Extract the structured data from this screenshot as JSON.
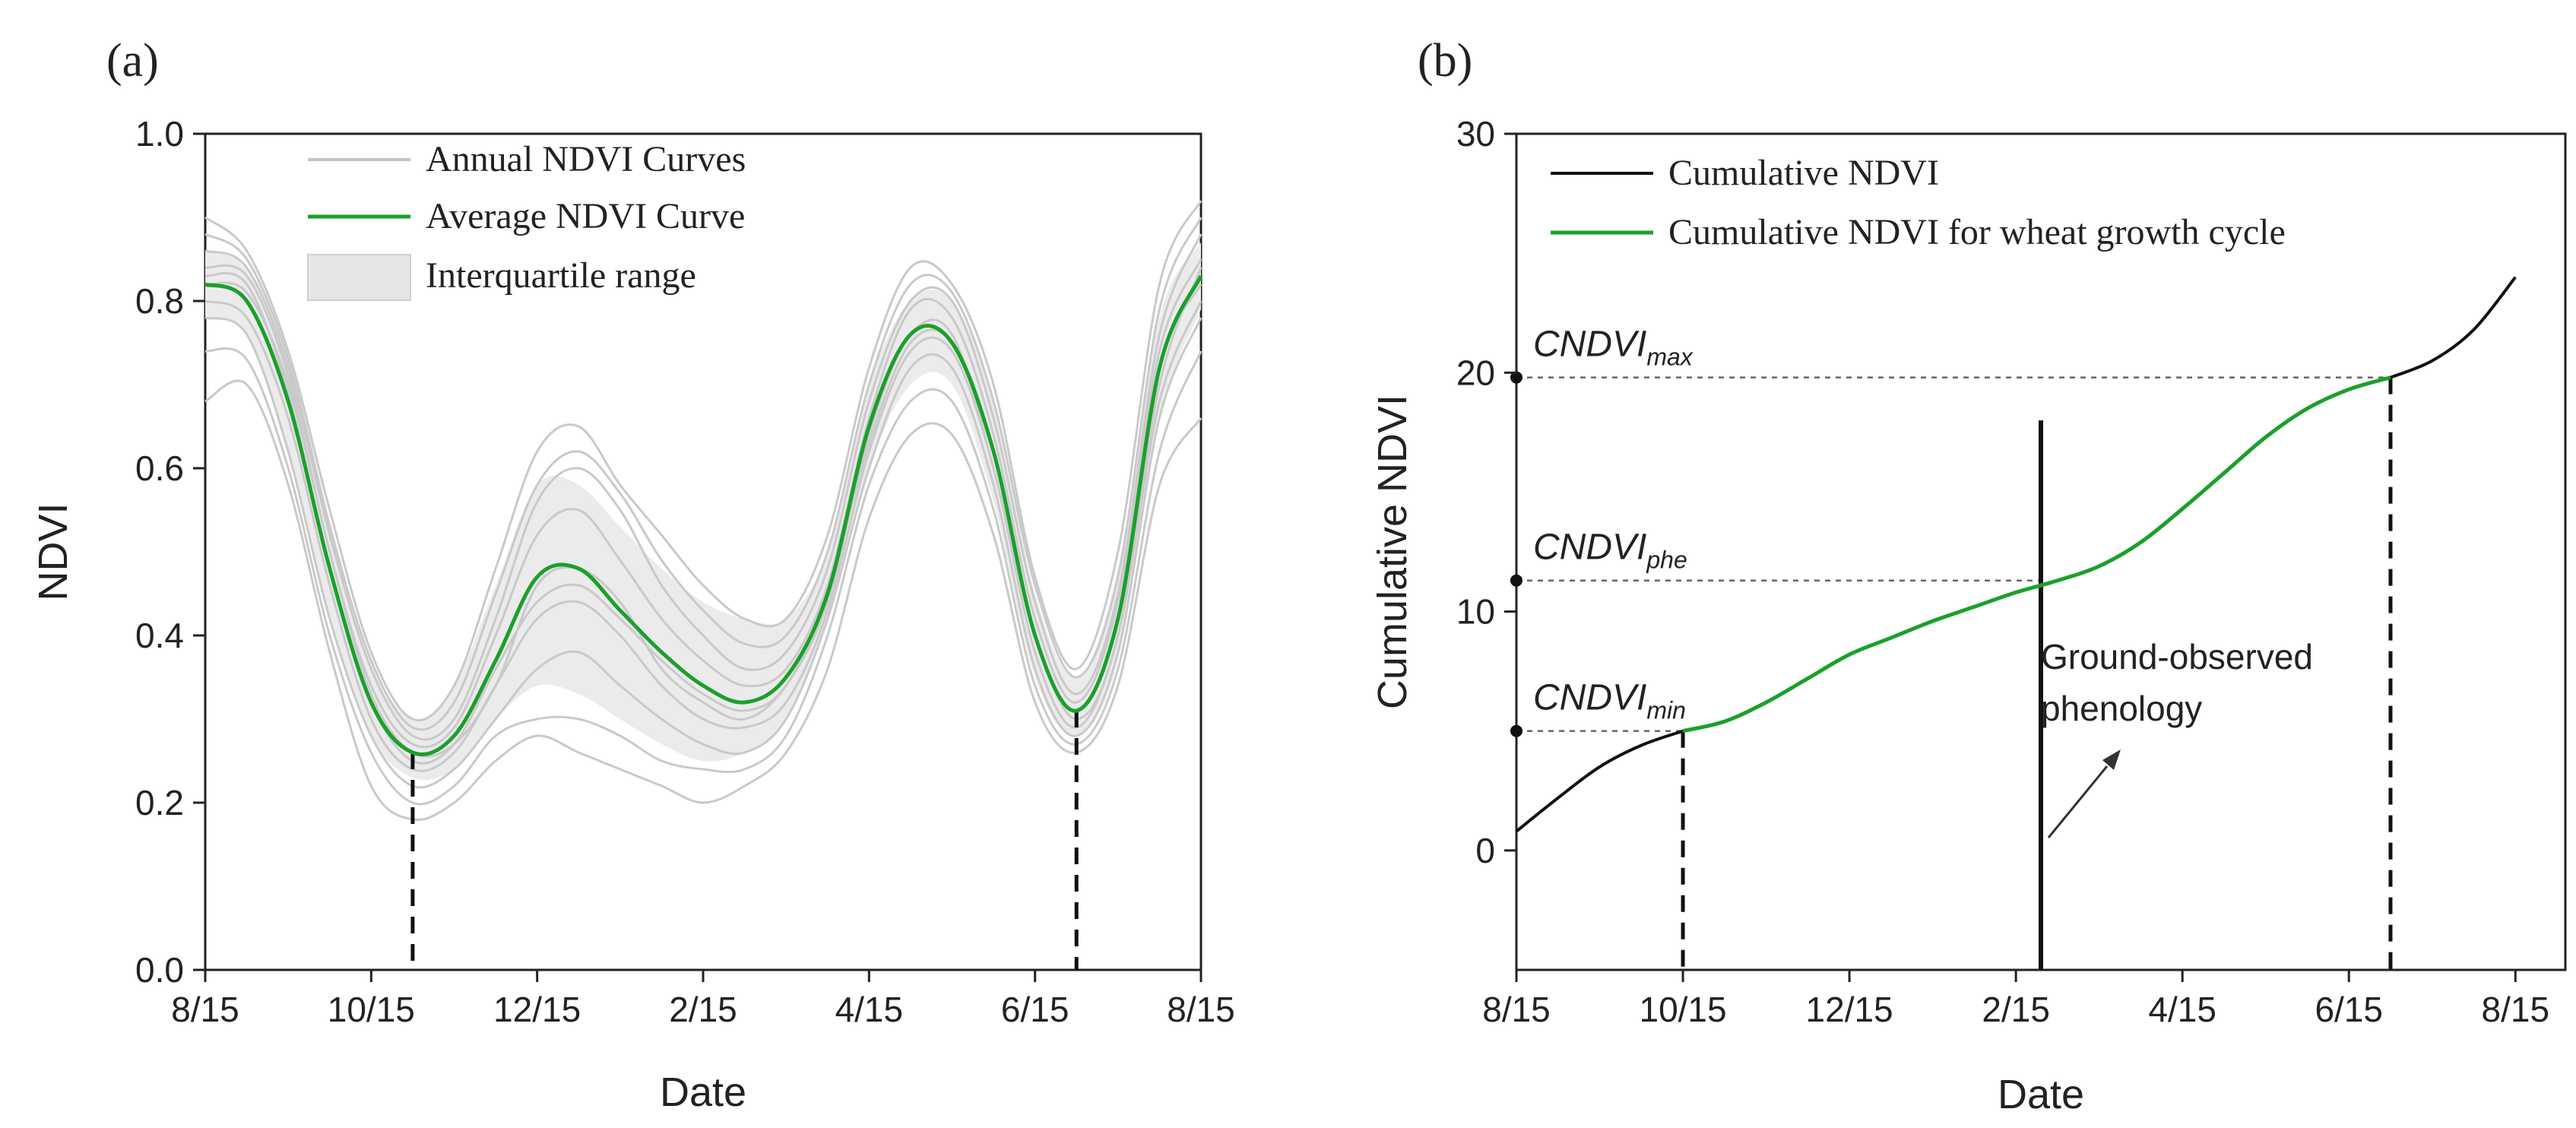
{
  "chart_data": [
    {
      "panel": "(a)",
      "type": "line",
      "xlabel": "Date",
      "ylabel": "NDVI",
      "x_ticks": [
        "8/15",
        "10/15",
        "12/15",
        "2/15",
        "4/15",
        "6/15",
        "8/15"
      ],
      "y_ticks": [
        "0.0",
        "0.2",
        "0.4",
        "0.6",
        "0.8",
        "1.0"
      ],
      "ylim": [
        0,
        1
      ],
      "grid": false,
      "legend_position": "top-center",
      "legend": [
        "Annual NDVI Curves",
        "Average NDVI Curve",
        "Interquartile range"
      ],
      "average_series": {
        "name": "Average NDVI Curve",
        "x_months": [
          0,
          0.5,
          1,
          1.5,
          2,
          2.5,
          3,
          3.5,
          4,
          4.5,
          5,
          5.5,
          6,
          6.5,
          7,
          7.5,
          8,
          8.5,
          9,
          9.5,
          10,
          10.5,
          11,
          11.5,
          12
        ],
        "values": [
          0.82,
          0.8,
          0.68,
          0.48,
          0.32,
          0.26,
          0.28,
          0.37,
          0.47,
          0.48,
          0.43,
          0.38,
          0.34,
          0.32,
          0.35,
          0.45,
          0.65,
          0.76,
          0.75,
          0.62,
          0.4,
          0.31,
          0.42,
          0.72,
          0.83
        ]
      },
      "iqr_band": {
        "name": "Interquartile range",
        "x_months": [
          0,
          0.5,
          1,
          1.5,
          2,
          2.5,
          3,
          3.5,
          4,
          4.5,
          5,
          5.5,
          6,
          6.5,
          7,
          7.5,
          8,
          8.5,
          9,
          9.5,
          10,
          10.5,
          11,
          11.5,
          12
        ],
        "lower": [
          0.78,
          0.76,
          0.62,
          0.42,
          0.28,
          0.23,
          0.24,
          0.3,
          0.34,
          0.33,
          0.3,
          0.27,
          0.25,
          0.26,
          0.3,
          0.42,
          0.6,
          0.7,
          0.7,
          0.56,
          0.35,
          0.28,
          0.37,
          0.66,
          0.79
        ],
        "upper": [
          0.86,
          0.84,
          0.74,
          0.54,
          0.37,
          0.3,
          0.34,
          0.46,
          0.58,
          0.58,
          0.53,
          0.48,
          0.44,
          0.42,
          0.42,
          0.5,
          0.7,
          0.8,
          0.8,
          0.68,
          0.45,
          0.35,
          0.48,
          0.78,
          0.87
        ]
      },
      "annual_curves": [
        {
          "name": "Annual NDVI Curve 1",
          "values": [
            0.86,
            0.84,
            0.72,
            0.52,
            0.36,
            0.28,
            0.3,
            0.42,
            0.56,
            0.6,
            0.55,
            0.46,
            0.4,
            0.36,
            0.38,
            0.48,
            0.68,
            0.8,
            0.8,
            0.66,
            0.44,
            0.33,
            0.45,
            0.76,
            0.88
          ]
        },
        {
          "name": "Annual NDVI Curve 2",
          "values": [
            0.78,
            0.76,
            0.62,
            0.42,
            0.28,
            0.22,
            0.24,
            0.3,
            0.36,
            0.38,
            0.34,
            0.3,
            0.27,
            0.26,
            0.3,
            0.42,
            0.6,
            0.72,
            0.72,
            0.58,
            0.36,
            0.28,
            0.38,
            0.66,
            0.78
          ]
        },
        {
          "name": "Annual NDVI Curve 3",
          "values": [
            0.82,
            0.81,
            0.7,
            0.5,
            0.33,
            0.26,
            0.27,
            0.34,
            0.46,
            0.48,
            0.44,
            0.36,
            0.32,
            0.3,
            0.34,
            0.44,
            0.64,
            0.76,
            0.76,
            0.6,
            0.4,
            0.3,
            0.4,
            0.7,
            0.84
          ]
        },
        {
          "name": "Annual NDVI Curve 4",
          "values": [
            0.9,
            0.86,
            0.74,
            0.55,
            0.38,
            0.3,
            0.34,
            0.48,
            0.62,
            0.65,
            0.58,
            0.52,
            0.46,
            0.42,
            0.42,
            0.52,
            0.72,
            0.84,
            0.82,
            0.7,
            0.47,
            0.36,
            0.5,
            0.82,
            0.92
          ]
        },
        {
          "name": "Annual NDVI Curve 5",
          "values": [
            0.74,
            0.73,
            0.6,
            0.4,
            0.26,
            0.2,
            0.22,
            0.28,
            0.3,
            0.3,
            0.28,
            0.25,
            0.24,
            0.24,
            0.28,
            0.4,
            0.58,
            0.68,
            0.68,
            0.55,
            0.34,
            0.27,
            0.36,
            0.62,
            0.74
          ]
        },
        {
          "name": "Annual NDVI Curve 6",
          "values": [
            0.84,
            0.83,
            0.71,
            0.5,
            0.34,
            0.27,
            0.29,
            0.4,
            0.52,
            0.55,
            0.49,
            0.42,
            0.37,
            0.34,
            0.36,
            0.46,
            0.66,
            0.79,
            0.78,
            0.64,
            0.42,
            0.32,
            0.44,
            0.74,
            0.85
          ]
        },
        {
          "name": "Annual NDVI Curve 7",
          "values": [
            0.8,
            0.78,
            0.66,
            0.46,
            0.3,
            0.24,
            0.26,
            0.34,
            0.42,
            0.44,
            0.4,
            0.34,
            0.3,
            0.29,
            0.32,
            0.43,
            0.62,
            0.74,
            0.74,
            0.6,
            0.38,
            0.29,
            0.4,
            0.68,
            0.8
          ]
        },
        {
          "name": "Annual NDVI Curve 8",
          "values": [
            0.88,
            0.85,
            0.73,
            0.53,
            0.37,
            0.29,
            0.32,
            0.45,
            0.58,
            0.62,
            0.57,
            0.49,
            0.43,
            0.39,
            0.4,
            0.5,
            0.7,
            0.82,
            0.81,
            0.68,
            0.46,
            0.35,
            0.47,
            0.79,
            0.9
          ]
        },
        {
          "name": "Annual NDVI Curve 9",
          "values": [
            0.68,
            0.7,
            0.58,
            0.38,
            0.22,
            0.18,
            0.2,
            0.25,
            0.28,
            0.26,
            0.24,
            0.22,
            0.2,
            0.22,
            0.26,
            0.36,
            0.54,
            0.64,
            0.64,
            0.52,
            0.32,
            0.26,
            0.34,
            0.58,
            0.66
          ]
        },
        {
          "name": "Annual NDVI Curve 10",
          "values": [
            0.83,
            0.82,
            0.69,
            0.48,
            0.32,
            0.25,
            0.27,
            0.36,
            0.44,
            0.46,
            0.42,
            0.37,
            0.33,
            0.31,
            0.34,
            0.45,
            0.63,
            0.75,
            0.75,
            0.62,
            0.4,
            0.31,
            0.42,
            0.72,
            0.82
          ]
        }
      ],
      "markers": [
        {
          "x_month": 2.5,
          "y_from": 0,
          "y_to": 0.26
        },
        {
          "x_month": 10.5,
          "y_from": 0,
          "y_to": 0.31
        }
      ]
    },
    {
      "panel": "(b)",
      "type": "line",
      "xlabel": "Date",
      "ylabel": "Cumulative NDVI",
      "x_ticks": [
        "8/15",
        "10/15",
        "12/15",
        "2/15",
        "4/15",
        "6/15",
        "8/15"
      ],
      "y_ticks": [
        "0",
        "10",
        "20",
        "30"
      ],
      "ylim": [
        -5,
        30
      ],
      "grid": false,
      "legend_position": "top-left",
      "legend": [
        "Cumulative NDVI",
        "Cumulative NDVI for wheat growth cycle"
      ],
      "series": [
        {
          "name": "Cumulative NDVI",
          "x_months": [
            0,
            0.5,
            1,
            1.5,
            2,
            10.5,
            11,
            11.5,
            12
          ],
          "values": [
            0.8,
            2.2,
            3.5,
            4.4,
            5.0,
            19.8,
            20.5,
            21.8,
            24.0
          ]
        },
        {
          "name": "Cumulative NDVI for wheat growth cycle",
          "x_months": [
            2,
            2.5,
            3,
            3.5,
            4,
            4.5,
            5,
            5.5,
            6,
            6.5,
            7,
            7.5,
            8,
            8.5,
            9,
            9.5,
            10,
            10.5
          ],
          "values": [
            5.0,
            5.4,
            6.2,
            7.2,
            8.2,
            8.9,
            9.6,
            10.2,
            10.8,
            11.3,
            11.9,
            12.9,
            14.3,
            15.8,
            17.3,
            18.5,
            19.3,
            19.8
          ]
        }
      ],
      "annotations": [
        {
          "text": "CNDVI",
          "sub": "max",
          "x_month": 0,
          "y": 19.8,
          "to_x_month": 10.5,
          "drop_x_month": 10.5
        },
        {
          "text": "CNDVI",
          "sub": "phe",
          "x_month": 0,
          "y": 11.3,
          "to_x_month": 6.3
        },
        {
          "text": "CNDVI",
          "sub": "min",
          "x_month": 0,
          "y": 5.0,
          "to_x_month": 2.0,
          "drop_x_month": 2.0
        }
      ],
      "ground_observed": {
        "label_line1": "Ground-observed",
        "label_line2": "phenology",
        "x_month": 6.3,
        "y_top": 18.0
      }
    }
  ]
}
